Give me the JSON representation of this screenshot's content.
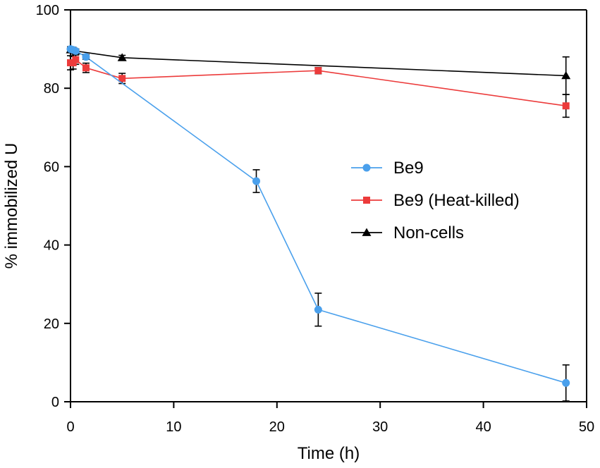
{
  "chart_data": {
    "type": "line",
    "title": "",
    "xlabel": "Time (h)",
    "ylabel": "% immobilized U",
    "xlim": [
      0,
      50
    ],
    "ylim": [
      0,
      100
    ],
    "xticks": [
      0,
      10,
      20,
      30,
      40,
      50
    ],
    "yticks": [
      0,
      20,
      40,
      60,
      80,
      100
    ],
    "grid": false,
    "legend_position": "center-right",
    "series": [
      {
        "name": "Be9",
        "color": "#4aa0ec",
        "marker": "circle",
        "x": [
          0,
          0.25,
          0.5,
          1.5,
          18,
          24,
          48
        ],
        "y": [
          90,
          89.8,
          89.5,
          88,
          56.3,
          23.5,
          4.8
        ],
        "err": [
          0.6,
          0.6,
          0.5,
          0.6,
          2.9,
          4.2,
          4.6
        ]
      },
      {
        "name": "Be9 (Heat-killed)",
        "color": "#ec3b3b",
        "marker": "square",
        "x": [
          0,
          0.25,
          0.5,
          1.5,
          5,
          24,
          48
        ],
        "y": [
          86.5,
          86.5,
          87.3,
          85.2,
          82.5,
          84.5,
          75.5
        ],
        "err": [
          1.8,
          1.6,
          1.2,
          1.2,
          1.3,
          0.8,
          2.9
        ]
      },
      {
        "name": "Non-cells",
        "color": "#000000",
        "marker": "triangle",
        "x": [
          0,
          0.5,
          5,
          48
        ],
        "y": [
          89.8,
          89.5,
          87.8,
          83.2
        ],
        "err": [
          0.5,
          0.5,
          0.6,
          4.8
        ]
      }
    ]
  }
}
